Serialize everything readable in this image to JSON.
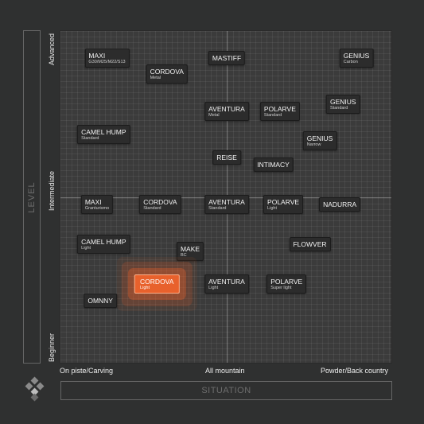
{
  "axes": {
    "y_title": "LEVEL",
    "x_title": "SITUATION",
    "y_ticks": [
      "Advanced",
      "Intermediate",
      "Beginner"
    ],
    "x_ticks": [
      "On piste/Carving",
      "All mountain",
      "Powder/Back country"
    ]
  },
  "colors": {
    "highlight": "#e8612c",
    "tile": "#2c2c2c",
    "background": "#2f3030"
  },
  "skis": [
    {
      "name": "MAXI",
      "sub": "G30/M25/M22/S13",
      "situation": 0.14,
      "level": 0.92
    },
    {
      "name": "CORDOVA",
      "sub": "Metal",
      "situation": 0.32,
      "level": 0.87
    },
    {
      "name": "MASTIFF",
      "sub": "",
      "situation": 0.5,
      "level": 0.92
    },
    {
      "name": "GENIUS",
      "sub": "Carbon",
      "situation": 0.89,
      "level": 0.92
    },
    {
      "name": "GENIUS",
      "sub": "Standard",
      "situation": 0.85,
      "level": 0.78
    },
    {
      "name": "AVENTURA",
      "sub": "Metal",
      "situation": 0.5,
      "level": 0.76
    },
    {
      "name": "POLARVE",
      "sub": "Standard",
      "situation": 0.66,
      "level": 0.76
    },
    {
      "name": "CAMEL HUMP",
      "sub": "Standard",
      "situation": 0.13,
      "level": 0.69
    },
    {
      "name": "GENIUS",
      "sub": "Narrow",
      "situation": 0.78,
      "level": 0.67
    },
    {
      "name": "REISE",
      "sub": "",
      "situation": 0.5,
      "level": 0.62
    },
    {
      "name": "INTIMACY",
      "sub": "",
      "situation": 0.64,
      "level": 0.6
    },
    {
      "name": "MAXI",
      "sub": "Granturismo",
      "situation": 0.11,
      "level": 0.48
    },
    {
      "name": "CORDOVA",
      "sub": "Standard",
      "situation": 0.3,
      "level": 0.48
    },
    {
      "name": "AVENTURA",
      "sub": "Standard",
      "situation": 0.5,
      "level": 0.48
    },
    {
      "name": "POLARVE",
      "sub": "Light",
      "situation": 0.67,
      "level": 0.48
    },
    {
      "name": "NADURRA",
      "sub": "",
      "situation": 0.84,
      "level": 0.48
    },
    {
      "name": "FLOWVER",
      "sub": "",
      "situation": 0.75,
      "level": 0.36
    },
    {
      "name": "CAMEL HUMP",
      "sub": "Light",
      "situation": 0.13,
      "level": 0.36
    },
    {
      "name": "MAKE",
      "sub": "BC",
      "situation": 0.39,
      "level": 0.34
    },
    {
      "name": "CORDOVA",
      "sub": "Light",
      "situation": 0.29,
      "level": 0.24,
      "highlight": true
    },
    {
      "name": "AVENTURA",
      "sub": "Light",
      "situation": 0.5,
      "level": 0.24
    },
    {
      "name": "POLARVE",
      "sub": "Super light",
      "situation": 0.68,
      "level": 0.24
    },
    {
      "name": "OMNNY",
      "sub": "",
      "situation": 0.12,
      "level": 0.19
    }
  ]
}
